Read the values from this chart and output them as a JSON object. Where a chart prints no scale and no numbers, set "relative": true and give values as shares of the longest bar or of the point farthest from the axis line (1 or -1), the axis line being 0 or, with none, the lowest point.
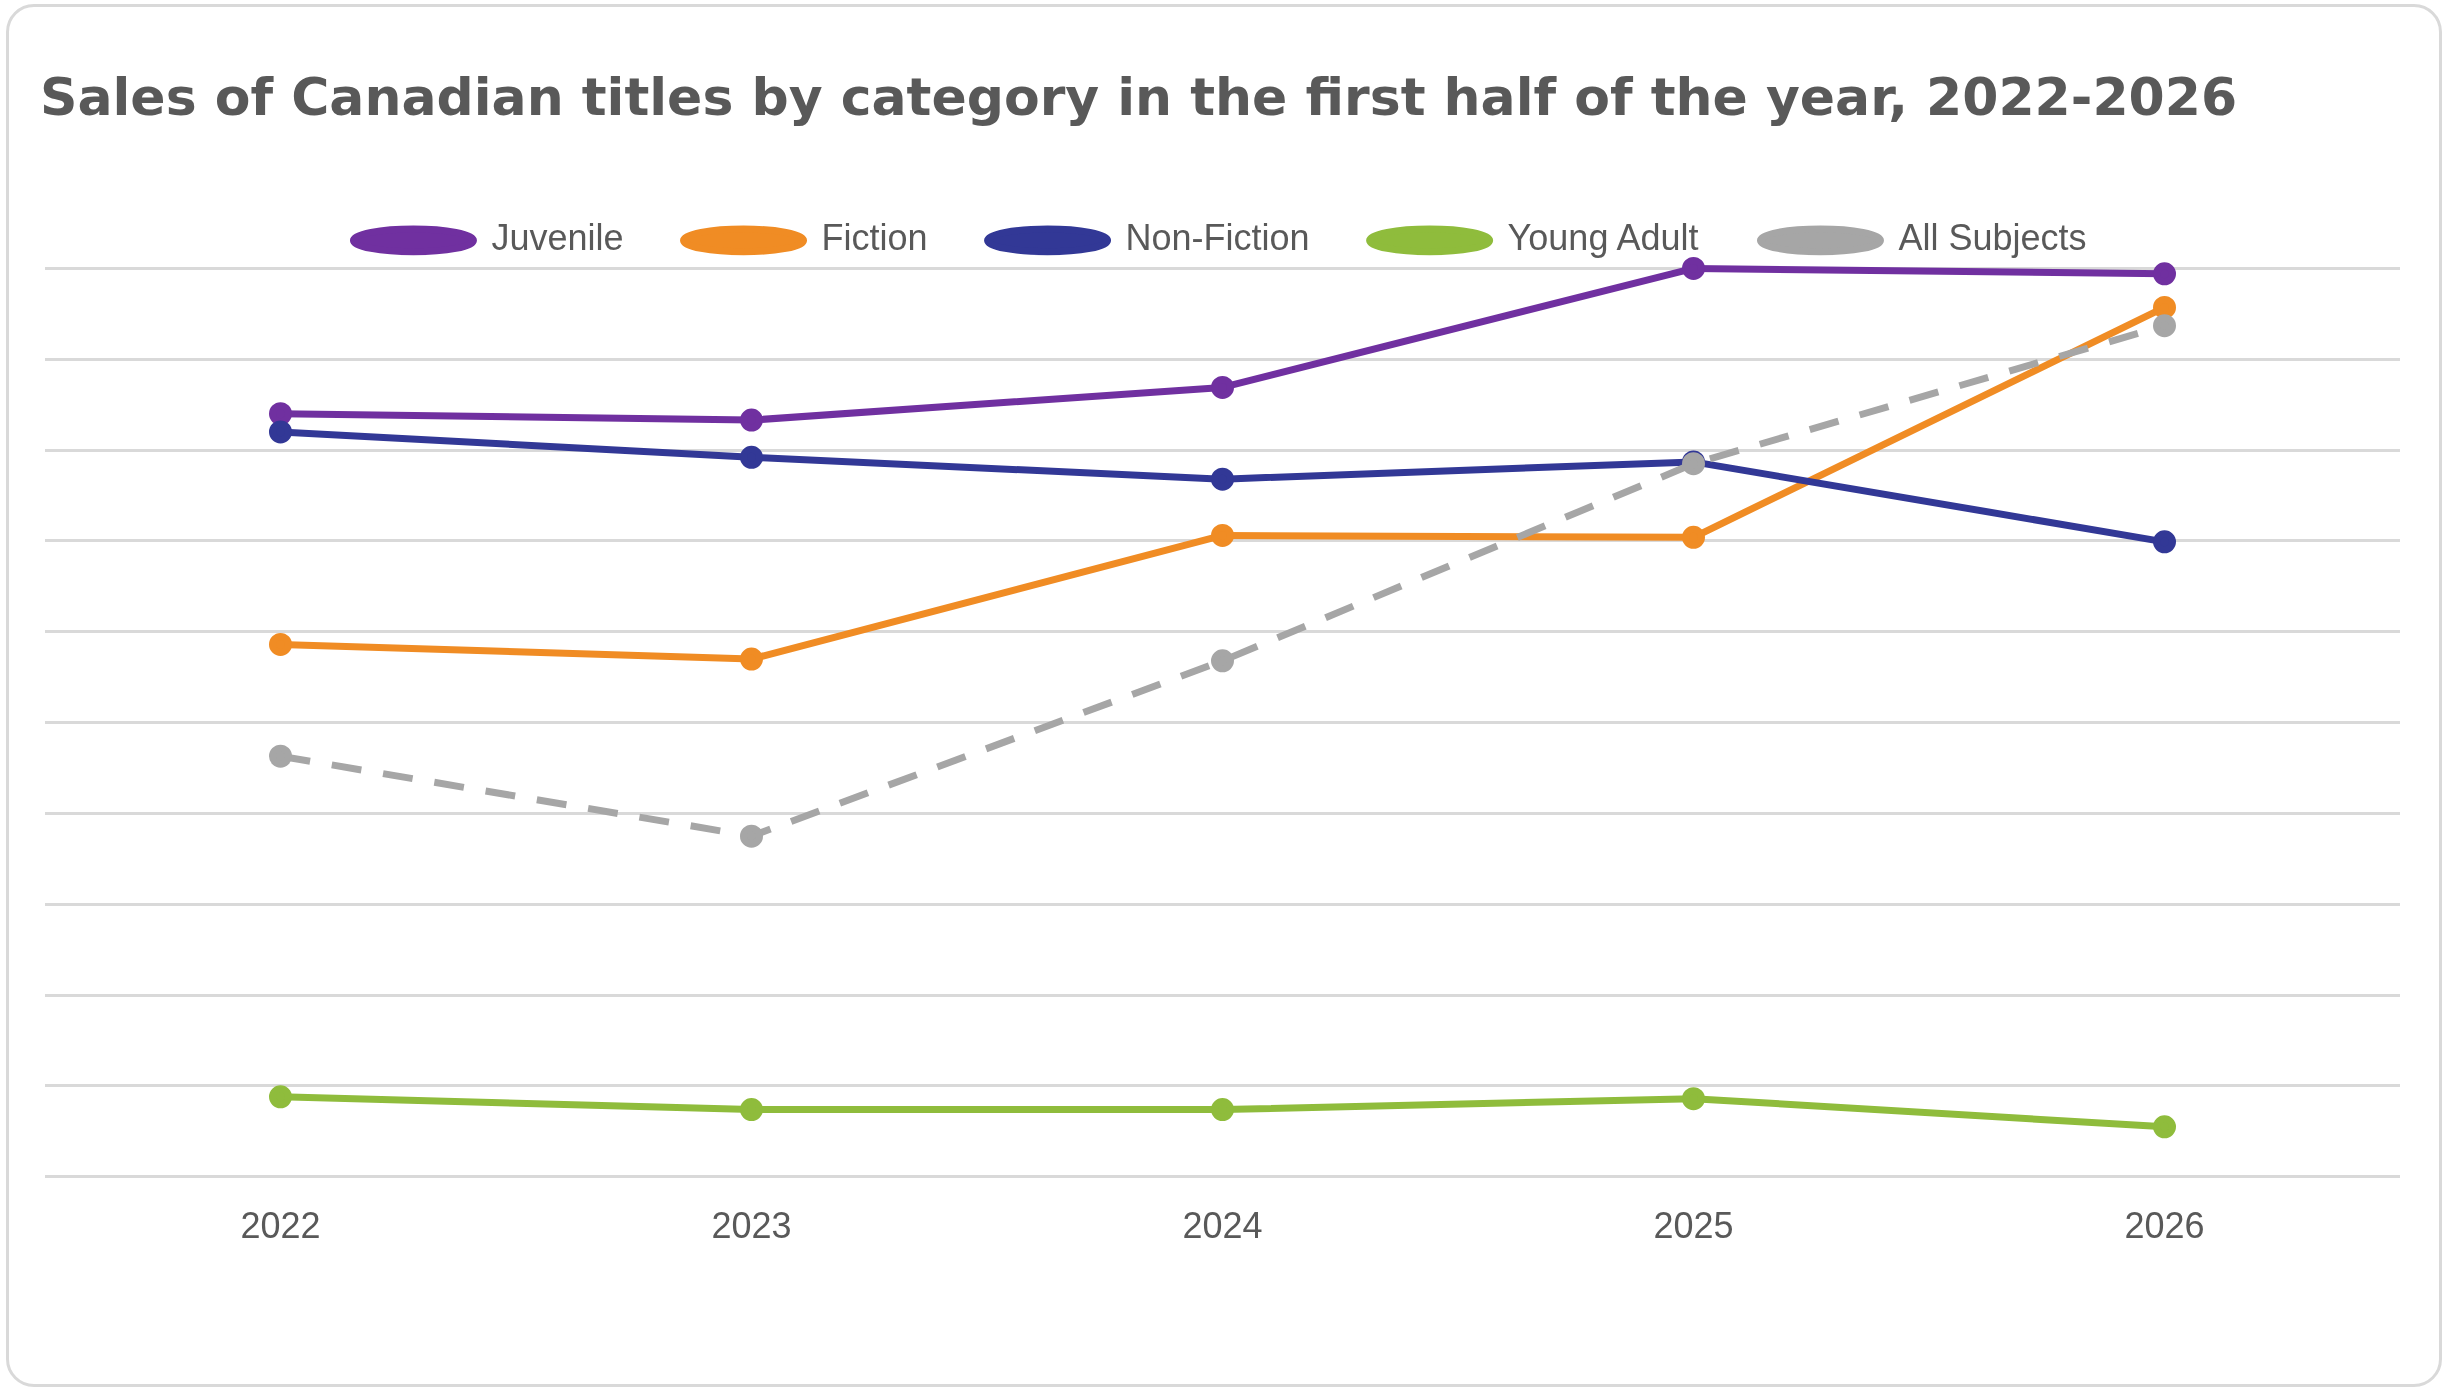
{
  "chart_data": {
    "type": "line",
    "title": "Sales of Canadian titles by category in the first half of the year, 2022-2026",
    "categories": [
      "2022",
      "2023",
      "2024",
      "2025",
      "2026"
    ],
    "relative": true,
    "grid": "y",
    "legend": "top",
    "marker": "circle",
    "series": [
      {
        "name": "Juvenile",
        "color": "#7030a0",
        "values": [
          0.84,
          0.833,
          0.869,
          1,
          0.994
        ]
      },
      {
        "name": "Fiction",
        "color": "#f08c24",
        "values": [
          0.586,
          0.57,
          0.706,
          0.704,
          0.957
        ]
      },
      {
        "name": "Non-Fiction",
        "color": "#323896",
        "values": [
          0.82,
          0.792,
          0.768,
          0.787,
          0.699
        ]
      },
      {
        "name": "Young Adult",
        "color": "#8fbc3c",
        "values": [
          0.088,
          0.074,
          0.074,
          0.086,
          0.055
        ]
      },
      {
        "name": "All Subjects",
        "color": "#a6a6a6",
        "values": [
          0.463,
          0.375,
          0.568,
          0.785,
          0.937
        ],
        "line_style": "dashed"
      }
    ]
  }
}
